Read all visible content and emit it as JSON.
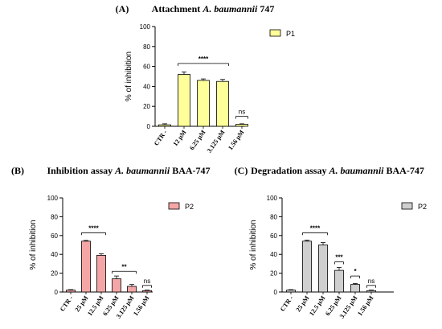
{
  "chart_data": [
    {
      "type": "bar",
      "panel": "(A)",
      "title_plain": "Attachment ",
      "title_italic": "A. baumannii",
      "title_tail": " 747",
      "ylabel": "% of inhibition",
      "ylim": [
        0,
        100
      ],
      "yticks": [
        0,
        20,
        40,
        60,
        80,
        100
      ],
      "categories": [
        "CTR -",
        "12 µM",
        "6.25 µM",
        "3.125 µM",
        "1.56 µM"
      ],
      "series": [
        {
          "name": "P1",
          "values": [
            1.5,
            52,
            46,
            45,
            2
          ],
          "errors": [
            1,
            2.5,
            1.5,
            2,
            0.5
          ]
        }
      ],
      "color": "#ffff99",
      "significance": [
        {
          "from": 1,
          "to": 3,
          "label": "****",
          "y": 63
        },
        {
          "from": 4,
          "to": 4,
          "label": "ns",
          "y": 10
        }
      ],
      "legend": "right"
    },
    {
      "type": "bar",
      "panel": "(B)",
      "title_plain": "Inhibition assay ",
      "title_italic": "A. baumannii",
      "title_tail": " BAA-747",
      "ylabel": "% of inhibition",
      "ylim": [
        0,
        100
      ],
      "yticks": [
        0,
        20,
        40,
        60,
        80,
        100
      ],
      "categories": [
        "CTR -",
        "25 µM",
        "12.5 µM",
        "6.25 µM",
        "3.125 µM",
        "1.56 µM"
      ],
      "series": [
        {
          "name": "P2",
          "values": [
            2,
            54,
            39,
            14,
            6,
            1.5
          ],
          "errors": [
            0.5,
            0.8,
            1.5,
            3,
            2,
            0.5
          ]
        }
      ],
      "color": "#f4a6a6",
      "significance": [
        {
          "from": 1,
          "to": 2,
          "label": "****",
          "y": 63
        },
        {
          "from": 3,
          "to": 4,
          "label": "**",
          "y": 22
        },
        {
          "from": 5,
          "to": 5,
          "label": "ns",
          "y": 7
        }
      ],
      "legend": "right"
    },
    {
      "type": "bar",
      "panel": "(C)",
      "title_plain": "Degradation assay ",
      "title_italic": "A. baumannii",
      "title_tail": " BAA-747",
      "ylabel": "% of inhibition",
      "ylim": [
        0,
        100
      ],
      "yticks": [
        0,
        20,
        40,
        60,
        80,
        100
      ],
      "categories": [
        "CTR -",
        "25 µM",
        "12.5 µM",
        "6.25 µM",
        "3.125 µM",
        "1.56 µM"
      ],
      "series": [
        {
          "name": "P2",
          "values": [
            2,
            54,
            50,
            23,
            8,
            1.5
          ],
          "errors": [
            0.5,
            1,
            2.5,
            3,
            1,
            0.5
          ]
        }
      ],
      "color": "#cfcfcf",
      "significance": [
        {
          "from": 1,
          "to": 2,
          "label": "****",
          "y": 63
        },
        {
          "from": 3,
          "to": 3,
          "label": "***",
          "y": 32
        },
        {
          "from": 4,
          "to": 4,
          "label": "*",
          "y": 17
        },
        {
          "from": 5,
          "to": 5,
          "label": "ns",
          "y": 7
        }
      ],
      "legend": "right"
    }
  ]
}
